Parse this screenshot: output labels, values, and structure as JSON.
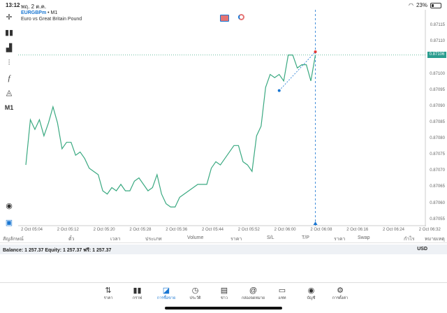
{
  "status_bar": {
    "time": "13:12",
    "date": "พฤ. 2 ต.ค.",
    "battery": "23%"
  },
  "symbol": {
    "name": "EURGBPm",
    "timeframe": "• M1",
    "description": "Euro vs Great Britain Pound"
  },
  "toolbar": {
    "timeframe_label": "M1"
  },
  "current_price": "0.87106",
  "y_axis": [
    "0.87115",
    "0.87110",
    "0.87105",
    "0.87100",
    "0.87095",
    "0.87090",
    "0.87085",
    "0.87080",
    "0.87075",
    "0.87070",
    "0.87065",
    "0.87060",
    "0.87055"
  ],
  "x_axis": [
    "2 Oct 05:04",
    "2 Oct 05:12",
    "2 Oct 05:20",
    "2 Oct 05:28",
    "2 Oct 05:36",
    "2 Oct 05:44",
    "2 Oct 05:52",
    "2 Oct 06:00",
    "2 Oct 06:08",
    "2 Oct 06:16",
    "2 Oct 06:24",
    "2 Oct 06:32"
  ],
  "columns": [
    "สัญลักษณ์",
    "ตั๋ว",
    "เวลา",
    "ประเภท",
    "Volume",
    "ราคา",
    "S/L",
    "T/P",
    "ราคา",
    "Swap",
    "กำไร",
    "หมายเหตุ"
  ],
  "balance": {
    "text": "Balance: 1 257.37 Equity: 1 257.37 ฟรี: 1 257.37",
    "currency": "USD"
  },
  "nav": [
    {
      "label": "ราคา",
      "icon": "arrows-updown-icon"
    },
    {
      "label": "กราฟ",
      "icon": "candles-icon"
    },
    {
      "label": "การซื้อขาย",
      "icon": "trade-chart-icon",
      "active": true
    },
    {
      "label": "ประวัติ",
      "icon": "history-icon"
    },
    {
      "label": "ข่าว",
      "icon": "news-icon"
    },
    {
      "label": "กล่องจดหมาย",
      "icon": "mailbox-icon"
    },
    {
      "label": "แชท",
      "icon": "chat-icon"
    },
    {
      "label": "บัญชี",
      "icon": "account-icon"
    },
    {
      "label": "การตั้งค่า",
      "icon": "settings-icon"
    }
  ],
  "chart_data": {
    "type": "line",
    "x": [
      "05:04",
      "05:05",
      "05:06",
      "05:07",
      "05:08",
      "05:09",
      "05:10",
      "05:11",
      "05:12",
      "05:13",
      "05:14",
      "05:15",
      "05:16",
      "05:17",
      "05:18",
      "05:19",
      "05:20",
      "05:21",
      "05:22",
      "05:23",
      "05:24",
      "05:25",
      "05:26",
      "05:27",
      "05:28",
      "05:29",
      "05:30",
      "05:31",
      "05:32",
      "05:33",
      "05:34",
      "05:35",
      "05:36",
      "05:37",
      "05:38",
      "05:39",
      "05:40",
      "05:41",
      "05:42",
      "05:43",
      "05:44",
      "05:45",
      "05:46",
      "05:47",
      "05:48",
      "05:49",
      "05:50",
      "05:51",
      "05:52",
      "05:53",
      "05:54",
      "05:55",
      "05:56",
      "05:57",
      "05:58",
      "05:59",
      "06:00",
      "06:01",
      "06:02",
      "06:03",
      "06:04",
      "06:05",
      "06:06",
      "06:07",
      "06:08"
    ],
    "values": [
      0.87072,
      0.87086,
      0.87083,
      0.87086,
      0.87081,
      0.87085,
      0.8709,
      0.87085,
      0.87077,
      0.87079,
      0.87079,
      0.87075,
      0.87076,
      0.87074,
      0.87071,
      0.8707,
      0.87069,
      0.87064,
      0.87063,
      0.87065,
      0.87064,
      0.87066,
      0.87064,
      0.87064,
      0.87067,
      0.87068,
      0.87066,
      0.87064,
      0.87065,
      0.87069,
      0.87063,
      0.8706,
      0.87059,
      0.87059,
      0.87062,
      0.87063,
      0.87064,
      0.87065,
      0.87066,
      0.87066,
      0.87066,
      0.87071,
      0.87073,
      0.87072,
      0.87074,
      0.87076,
      0.87078,
      0.87078,
      0.87073,
      0.87072,
      0.8707,
      0.87081,
      0.87084,
      0.87096,
      0.871,
      0.87099,
      0.871,
      0.87098,
      0.87106,
      0.87106,
      0.87102,
      0.87103,
      0.87103,
      0.87098,
      0.87106
    ],
    "ylim": [
      0.87053,
      0.8712
    ],
    "current_price": 0.87106,
    "trend_line": {
      "from": [
        "06:00",
        0.87095
      ],
      "to": [
        "06:08",
        0.87107
      ]
    },
    "crosshair_time": "06:08",
    "colors": {
      "line": "#3aa981",
      "price_line": "#3aa981",
      "trend": "#1976d2",
      "crosshair": "#1976d2",
      "crosshair_point": "#e53935"
    }
  }
}
